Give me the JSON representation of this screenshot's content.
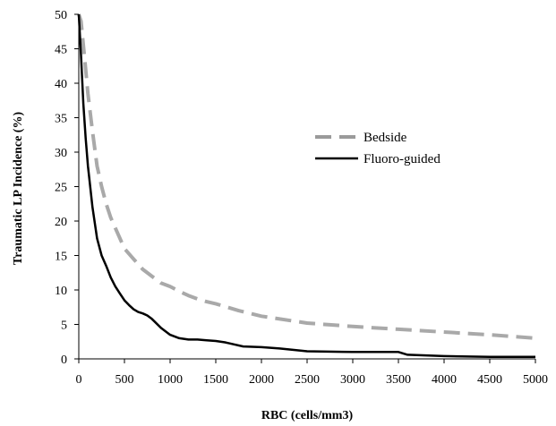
{
  "chart_data": {
    "type": "line",
    "title": "",
    "xlabel": "RBC (cells/mm3)",
    "ylabel": "Traumatic LP Incidence (%)",
    "xlim": [
      0,
      5000
    ],
    "ylim": [
      0,
      50
    ],
    "x_ticks": [
      0,
      500,
      1000,
      1500,
      2000,
      2500,
      3000,
      3500,
      4000,
      4500,
      5000
    ],
    "y_ticks": [
      0,
      5,
      10,
      15,
      20,
      25,
      30,
      35,
      40,
      45,
      50
    ],
    "grid": false,
    "legend_position": "right",
    "series": [
      {
        "name": "Bedside",
        "color": "#9a9a9a",
        "style": "dashed",
        "x": [
          0,
          25,
          50,
          75,
          100,
          150,
          200,
          250,
          300,
          350,
          400,
          500,
          600,
          700,
          800,
          900,
          1000,
          1100,
          1200,
          1300,
          1400,
          1500,
          1750,
          2000,
          2500,
          3000,
          3500,
          4000,
          4500,
          5000
        ],
        "y": [
          50,
          49,
          45.5,
          42,
          38.5,
          33,
          28,
          25,
          22.5,
          20.5,
          19,
          16,
          14.5,
          13,
          12,
          11,
          10.5,
          9.8,
          9.2,
          8.7,
          8.3,
          8,
          7,
          6.2,
          5.2,
          4.7,
          4.3,
          3.9,
          3.5,
          3
        ]
      },
      {
        "name": "Fluoro-guided",
        "color": "#000000",
        "style": "solid",
        "x": [
          0,
          25,
          50,
          75,
          100,
          150,
          200,
          250,
          300,
          350,
          400,
          450,
          500,
          550,
          600,
          650,
          700,
          750,
          800,
          900,
          1000,
          1100,
          1200,
          1300,
          1400,
          1500,
          1600,
          1700,
          1800,
          2000,
          2200,
          2500,
          3000,
          3500,
          3600,
          4000,
          4500,
          5000
        ],
        "y": [
          50,
          44,
          37,
          32,
          28,
          22,
          17.5,
          15,
          13.5,
          11.8,
          10.5,
          9.5,
          8.5,
          7.8,
          7.2,
          6.8,
          6.6,
          6.3,
          5.8,
          4.5,
          3.5,
          3,
          2.8,
          2.8,
          2.7,
          2.6,
          2.4,
          2.1,
          1.8,
          1.7,
          1.5,
          1.1,
          1,
          1,
          0.6,
          0.4,
          0.3,
          0.3
        ]
      }
    ]
  }
}
